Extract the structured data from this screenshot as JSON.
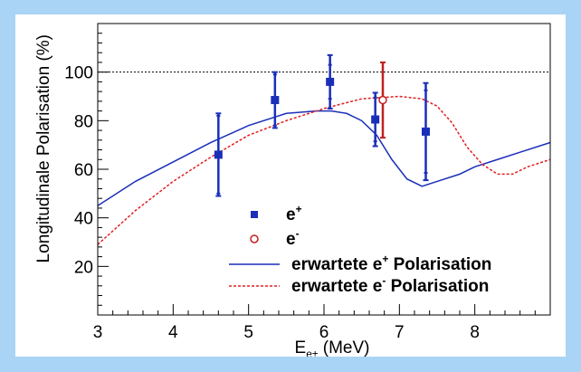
{
  "chart_data": {
    "type": "scatter",
    "xlabel": "E",
    "xlabel_sub": "e±",
    "xlabel_unit": " (MeV)",
    "ylabel": "Longitudinale Polarisation (%)",
    "xlim": [
      3,
      9
    ],
    "ylim": [
      0,
      120
    ],
    "xticks": [
      3,
      4,
      5,
      6,
      7,
      8
    ],
    "yticks": [
      20,
      40,
      60,
      80,
      100
    ],
    "reference_line": {
      "y": 100,
      "style": "dotted",
      "color": "#000000"
    },
    "legend_placement": "bottom-right",
    "series": [
      {
        "kind": "points",
        "marker": "square",
        "color": "#1a2fb8",
        "legend_label": "e",
        "legend_sup": "+",
        "x": [
          4.6,
          5.35,
          6.08,
          6.68,
          7.35
        ],
        "y": [
          66,
          88.5,
          96,
          80.5,
          75.5
        ],
        "err_stat": [
          17,
          11.5,
          11,
          11,
          20
        ],
        "err_inner": [
          16,
          10.5,
          7,
          9,
          17
        ]
      },
      {
        "kind": "points",
        "marker": "open-circle",
        "color": "#c0201f",
        "legend_label": "e",
        "legend_sup": "-",
        "x": [
          6.78
        ],
        "y": [
          88.5
        ],
        "err_stat": [
          15.5
        ],
        "err_inner": [
          0
        ]
      },
      {
        "kind": "line",
        "style": "solid",
        "color": "#1a2fb8",
        "legend_label": "erwartete e",
        "legend_sup": "+",
        "legend_suffix": " Polarisation",
        "x": [
          3.0,
          3.5,
          4.0,
          4.5,
          5.0,
          5.5,
          5.9,
          6.1,
          6.3,
          6.5,
          6.7,
          6.9,
          7.1,
          7.3,
          7.5,
          7.8,
          8.0,
          8.3,
          8.6,
          9.0
        ],
        "y": [
          45,
          55,
          63,
          71,
          78,
          83,
          84,
          84,
          83,
          80,
          74,
          64,
          56,
          53,
          55,
          58,
          61,
          64,
          67,
          71
        ]
      },
      {
        "kind": "line",
        "style": "dashed",
        "color": "#e02020",
        "legend_label": "erwartete e",
        "legend_sup": "-",
        "legend_suffix": " Polarisation",
        "x": [
          3.0,
          3.5,
          4.0,
          4.5,
          5.0,
          5.5,
          6.0,
          6.5,
          7.0,
          7.3,
          7.5,
          7.7,
          7.9,
          8.1,
          8.3,
          8.5,
          8.7,
          9.0
        ],
        "y": [
          29,
          43,
          55,
          65,
          74,
          80,
          85,
          89,
          90,
          89,
          86,
          79,
          69,
          62,
          58,
          58,
          61,
          64
        ]
      }
    ]
  }
}
